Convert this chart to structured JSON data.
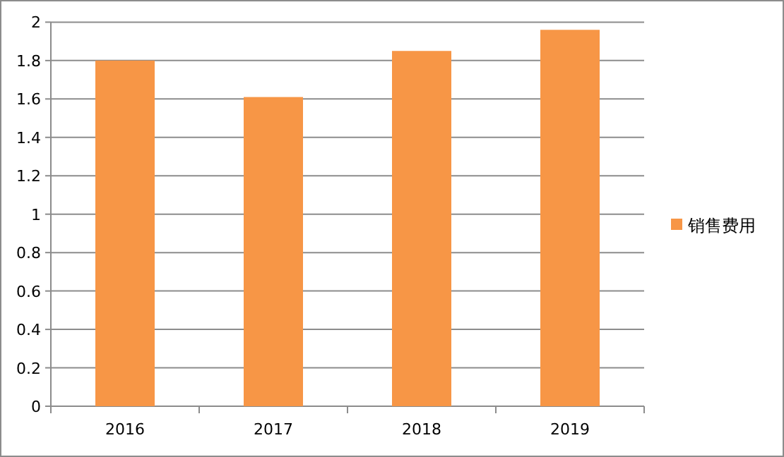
{
  "chart_data": {
    "type": "bar",
    "categories": [
      "2016",
      "2017",
      "2018",
      "2019"
    ],
    "series": [
      {
        "name": "销售费用",
        "color": "#f79646",
        "values": [
          1.8,
          1.61,
          1.85,
          1.96
        ]
      }
    ],
    "ylim": [
      0,
      2
    ],
    "yticks": [
      0,
      0.2,
      0.4,
      0.6,
      0.8,
      1,
      1.2,
      1.4,
      1.6,
      1.8,
      2
    ],
    "grid": "y",
    "legend": "right"
  }
}
